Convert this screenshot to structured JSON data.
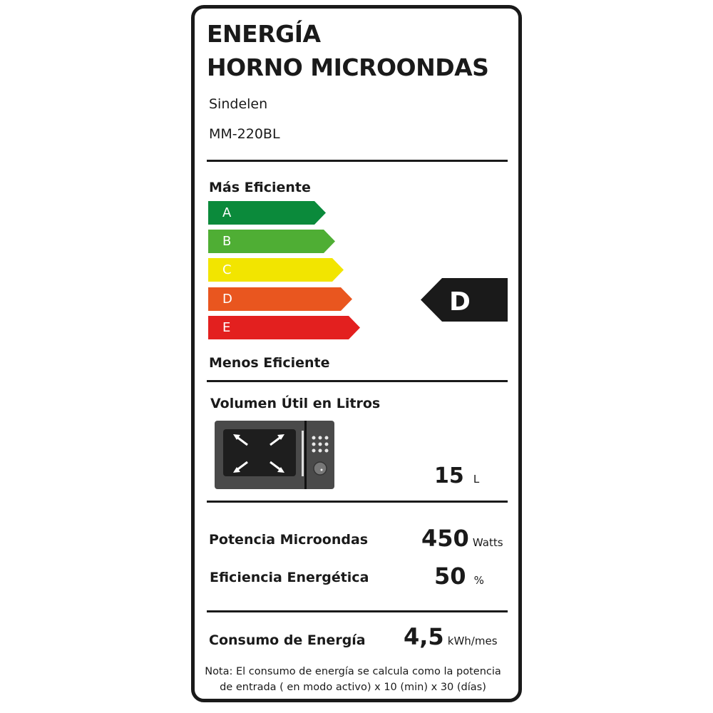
{
  "header": {
    "title_line1": "ENERGÍA",
    "title_line2": "HORNO MICROONDAS",
    "brand": "Sindelen",
    "model": "MM-220BL"
  },
  "efficiency": {
    "top_label": "Más Eficiente",
    "bottom_label": "Menos Eficiente",
    "classes": [
      {
        "letter": "A",
        "color": "#0b8a3b"
      },
      {
        "letter": "B",
        "color": "#4fae34"
      },
      {
        "letter": "C",
        "color": "#f2e500"
      },
      {
        "letter": "D",
        "color": "#e9561f"
      },
      {
        "letter": "E",
        "color": "#e3201f"
      }
    ],
    "rating": "D",
    "rating_color": "#1a1a1a"
  },
  "volume": {
    "label": "Volumen Útil en Litros",
    "icon": "microwave-icon",
    "value": "15",
    "unit": "L"
  },
  "power": {
    "label": "Potencia Microondas",
    "value": "450",
    "unit": "Watts"
  },
  "efficiency_pct": {
    "label": "Eficiencia Energética",
    "value": "50",
    "unit": "%"
  },
  "consumption": {
    "label": "Consumo de Energía",
    "value": "4,5",
    "unit": "kWh/mes"
  },
  "note": {
    "line1": "Nota: El consumo de energía se calcula como la potencia",
    "line2": "de entrada ( en modo activo) x 10 (min) x 30 (días)"
  }
}
